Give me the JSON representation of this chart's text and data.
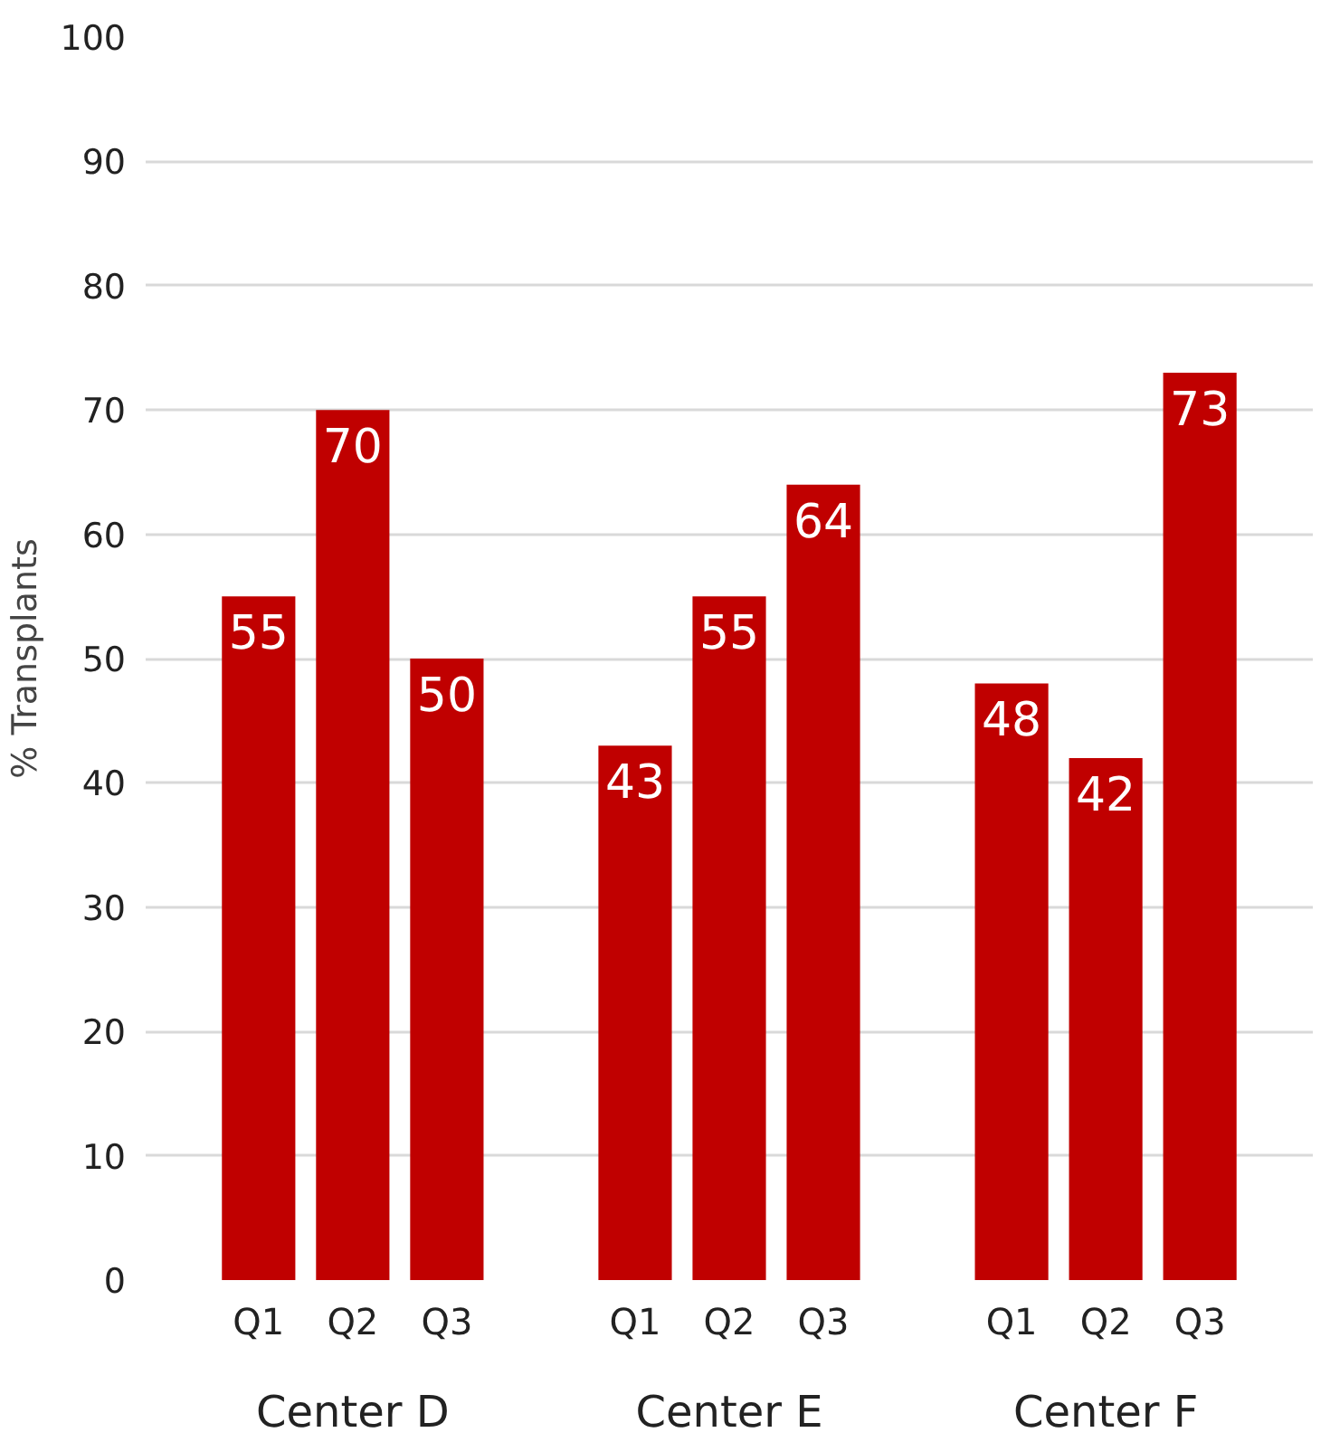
{
  "chart_data": {
    "type": "bar",
    "ylabel": "% Transplants",
    "categories": [
      "Q1",
      "Q2",
      "Q3",
      "Q1",
      "Q2",
      "Q3",
      "Q1",
      "Q2",
      "Q3"
    ],
    "values": [
      55,
      70,
      50,
      43,
      55,
      64,
      48,
      42,
      73
    ],
    "color": "#c00000",
    "data_labels": true,
    "ylim": [
      0,
      100
    ],
    "yticks": [
      0,
      10,
      20,
      30,
      40,
      50,
      60,
      70,
      80,
      90,
      100
    ],
    "grid": "y",
    "annotations": [
      "Center D",
      "Center E",
      "Center F"
    ]
  }
}
